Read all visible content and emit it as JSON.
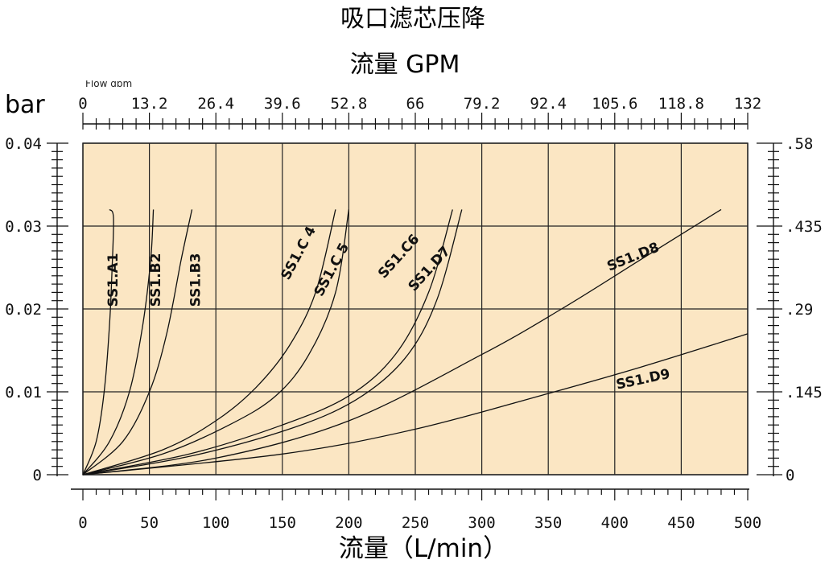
{
  "chart_data": {
    "type": "line",
    "title": "吸口滤芯压降",
    "top_axis_title": "流量 GPM",
    "xlabel": "流量（L/min）",
    "ylabel_left": "bar",
    "top_axis_overlay_text": "Flow gpm",
    "x_ticks": [
      "0",
      "50",
      "100",
      "150",
      "200",
      "250",
      "300",
      "350",
      "400",
      "450",
      "500"
    ],
    "top_ticks": [
      "0",
      "13.2",
      "26.4",
      "39.6",
      "52.8",
      "66",
      "79.2",
      "92.4",
      "105.6",
      "118.8",
      "132"
    ],
    "left_ticks": [
      "0",
      "0.01",
      "0.02",
      "0.03",
      "0.04"
    ],
    "right_ticks": [
      "0",
      ".145",
      ".29",
      ".435",
      ".58"
    ],
    "xlim": [
      0,
      500
    ],
    "ylim": [
      0,
      0.04
    ],
    "grid": true,
    "plot_background": "#fbe6c3",
    "series": [
      {
        "name": "SS1.A1",
        "x": [
          0,
          10,
          16,
          20,
          22,
          23,
          20
        ],
        "y": [
          0,
          0.004,
          0.01,
          0.018,
          0.025,
          0.031,
          0.032
        ]
      },
      {
        "name": "SS1.B2",
        "x": [
          0,
          20,
          35,
          45,
          51,
          53
        ],
        "y": [
          0,
          0.004,
          0.01,
          0.018,
          0.026,
          0.032
        ]
      },
      {
        "name": "SS1.B3",
        "x": [
          0,
          30,
          50,
          63,
          74,
          82
        ],
        "y": [
          0,
          0.004,
          0.01,
          0.017,
          0.026,
          0.032
        ]
      },
      {
        "name": "SS1.C 4",
        "x": [
          0,
          60,
          100,
          130,
          155,
          175,
          190
        ],
        "y": [
          0,
          0.003,
          0.0065,
          0.0105,
          0.0155,
          0.022,
          0.032
        ]
      },
      {
        "name": "SS1.C 5",
        "x": [
          0,
          60,
          110,
          145,
          170,
          190,
          200
        ],
        "y": [
          0,
          0.0025,
          0.006,
          0.0095,
          0.0145,
          0.022,
          0.032
        ]
      },
      {
        "name": "SS1.C6",
        "x": [
          0,
          80,
          150,
          200,
          235,
          260,
          278
        ],
        "y": [
          0,
          0.0025,
          0.006,
          0.0095,
          0.0145,
          0.022,
          0.032
        ]
      },
      {
        "name": "SS1.D7",
        "x": [
          0,
          80,
          155,
          205,
          242,
          266,
          285
        ],
        "y": [
          0,
          0.0022,
          0.0055,
          0.009,
          0.014,
          0.021,
          0.032
        ]
      },
      {
        "name": "SS1.D8",
        "x": [
          0,
          100,
          200,
          300,
          360,
          420,
          480
        ],
        "y": [
          0,
          0.002,
          0.0065,
          0.0145,
          0.02,
          0.026,
          0.032
        ]
      },
      {
        "name": "SS1.D9",
        "x": [
          0,
          150,
          250,
          350,
          420,
          500
        ],
        "y": [
          0,
          0.0025,
          0.0055,
          0.0098,
          0.013,
          0.017
        ]
      }
    ]
  }
}
